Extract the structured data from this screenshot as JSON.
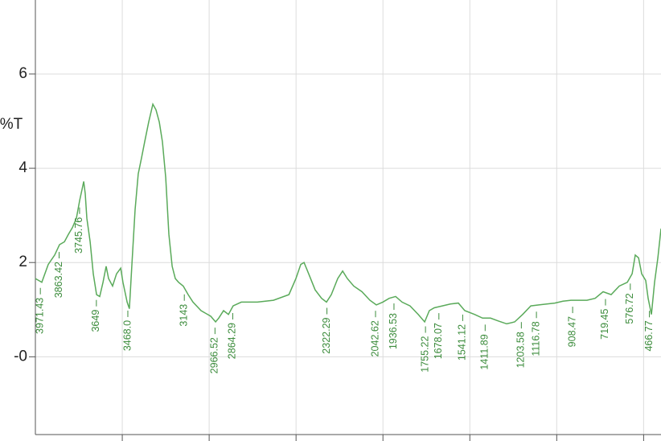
{
  "chart_data": {
    "type": "line",
    "ylabel": "%T",
    "x": [
      4000,
      3963,
      3926,
      3889,
      3861,
      3833,
      3810,
      3787,
      3764,
      3745,
      3732,
      3722,
      3713,
      3704,
      3685,
      3667,
      3648,
      3630,
      3611,
      3593,
      3579,
      3556,
      3533,
      3509,
      3496,
      3472,
      3459,
      3445,
      3426,
      3408,
      3389,
      3371,
      3348,
      3324,
      3306,
      3287,
      3269,
      3250,
      3232,
      3213,
      3195,
      3176,
      3149,
      3121,
      3093,
      3047,
      2991,
      2963,
      2945,
      2917,
      2889,
      2862,
      2815,
      2723,
      2630,
      2541,
      2501,
      2473,
      2454,
      2427,
      2390,
      2353,
      2325,
      2297,
      2260,
      2232,
      2205,
      2168,
      2121,
      2075,
      2038,
      2001,
      1964,
      1927,
      1890,
      1844,
      1797,
      1760,
      1733,
      1705,
      1658,
      1612,
      1566,
      1529,
      1473,
      1427,
      1381,
      1335,
      1288,
      1242,
      1196,
      1149,
      1103,
      1057,
      1011,
      964,
      918,
      872,
      826,
      779,
      733,
      687,
      640,
      594,
      566,
      548,
      529,
      511,
      488,
      474,
      455,
      437,
      418,
      400
    ],
    "series": [
      {
        "color": "#5aaa5a",
        "values": [
          1.66,
          1.58,
          1.96,
          2.16,
          2.38,
          2.44,
          2.6,
          2.74,
          2.94,
          3.32,
          3.54,
          3.72,
          3.46,
          2.94,
          2.44,
          1.76,
          1.32,
          1.28,
          1.58,
          1.92,
          1.66,
          1.5,
          1.76,
          1.88,
          1.58,
          1.16,
          1.02,
          1.92,
          3.12,
          3.88,
          4.22,
          4.56,
          4.98,
          5.36,
          5.24,
          4.98,
          4.56,
          3.8,
          2.6,
          1.92,
          1.66,
          1.58,
          1.5,
          1.32,
          1.16,
          0.98,
          0.86,
          0.74,
          0.82,
          0.98,
          0.9,
          1.08,
          1.16,
          1.16,
          1.2,
          1.32,
          1.66,
          1.96,
          2.0,
          1.76,
          1.42,
          1.24,
          1.16,
          1.32,
          1.66,
          1.82,
          1.66,
          1.5,
          1.38,
          1.2,
          1.1,
          1.16,
          1.24,
          1.28,
          1.16,
          1.08,
          0.9,
          0.74,
          0.98,
          1.04,
          1.08,
          1.12,
          1.14,
          0.98,
          0.9,
          0.82,
          0.82,
          0.76,
          0.7,
          0.74,
          0.9,
          1.08,
          1.1,
          1.12,
          1.14,
          1.18,
          1.2,
          1.2,
          1.2,
          1.24,
          1.38,
          1.32,
          1.5,
          1.58,
          1.76,
          2.16,
          2.1,
          1.76,
          1.62,
          1.24,
          0.9,
          1.58,
          2.1,
          2.72
        ]
      }
    ],
    "peak_color": "#3c8c3c",
    "peaks": [
      3971.43,
      3863.42,
      3745.76,
      3649,
      {
        "value": 3468.0,
        "label": "3468.0"
      },
      3143,
      2966.52,
      2864.29,
      2322.29,
      2042.62,
      1936.53,
      1755.22,
      1678.07,
      1541.12,
      1411.89,
      1203.58,
      1116.78,
      908.47,
      719.45,
      576.72,
      466.77
    ],
    "xlim": [
      4000,
      400
    ],
    "xticks": [
      3500,
      3000,
      2500,
      2000,
      1500,
      1000,
      500
    ],
    "ylim": [
      -1.65,
      7.57
    ],
    "yticks": [
      6,
      4,
      2,
      {
        "value": 0,
        "label": "-0"
      }
    ],
    "grid": true
  }
}
